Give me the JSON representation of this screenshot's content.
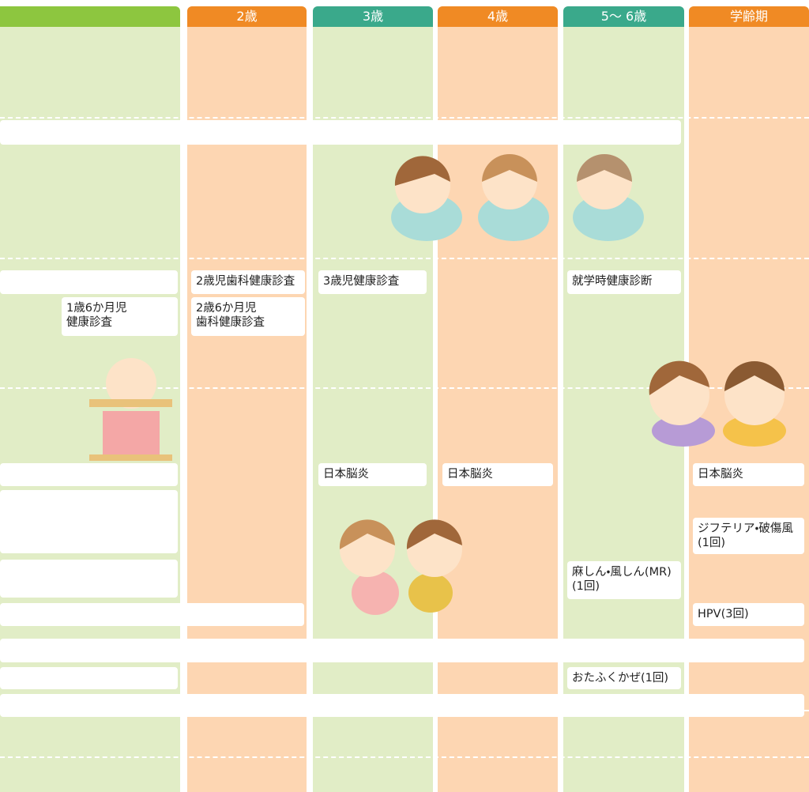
{
  "header": {
    "columns": [
      "2歳",
      "3歳",
      "4歳",
      "5〜 6歳",
      "学齢期"
    ]
  },
  "checkups": [
    "2歳児歯科健康診査",
    "3歳児健康診査",
    "就学時健康診断",
    "1歳6か月児\n健康診査",
    "2歳6か月児\n歯科健康診査"
  ],
  "vaccinations": [
    "日本脳炎",
    "日本脳炎",
    "日本脳炎",
    "ジフテリア・破傷風\n(1回)",
    "麻しん・風しん(MR)\n(1回)",
    "HPV(3回)",
    "おたふくかぜ(1回)"
  ]
}
